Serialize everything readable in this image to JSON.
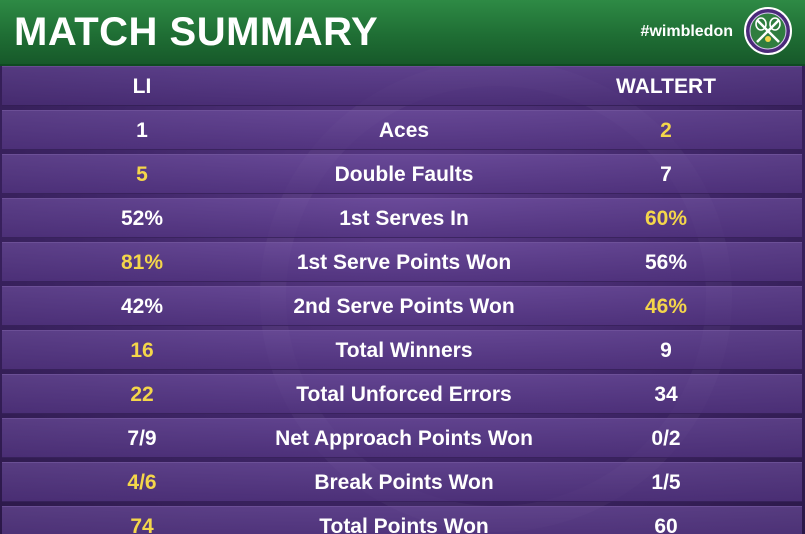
{
  "header": {
    "title": "MATCH SUMMARY",
    "hashtag": "#wimbledon",
    "logo_icon": "wimbledon-logo-icon"
  },
  "colors": {
    "header_green": "#1f6e34",
    "background_purple": "#3e2566",
    "highlight_gold": "#f4d64a",
    "text_white": "#ffffff"
  },
  "players": {
    "left": "LI",
    "right": "WALTERT"
  },
  "rows": [
    {
      "stat": "Aces",
      "left": "1",
      "right": "2",
      "winner": "right"
    },
    {
      "stat": "Double Faults",
      "left": "5",
      "right": "7",
      "winner": "left"
    },
    {
      "stat": "1st Serves In",
      "left": "52%",
      "right": "60%",
      "winner": "right"
    },
    {
      "stat": "1st Serve Points Won",
      "left": "81%",
      "right": "56%",
      "winner": "left"
    },
    {
      "stat": "2nd Serve Points Won",
      "left": "42%",
      "right": "46%",
      "winner": "right"
    },
    {
      "stat": "Total Winners",
      "left": "16",
      "right": "9",
      "winner": "left"
    },
    {
      "stat": "Total Unforced Errors",
      "left": "22",
      "right": "34",
      "winner": "left"
    },
    {
      "stat": "Net Approach Points Won",
      "left": "7/9",
      "right": "0/2",
      "winner": "none"
    },
    {
      "stat": "Break Points Won",
      "left": "4/6",
      "right": "1/5",
      "winner": "left"
    },
    {
      "stat": "Total Points Won",
      "left": "74",
      "right": "60",
      "winner": "left"
    }
  ]
}
